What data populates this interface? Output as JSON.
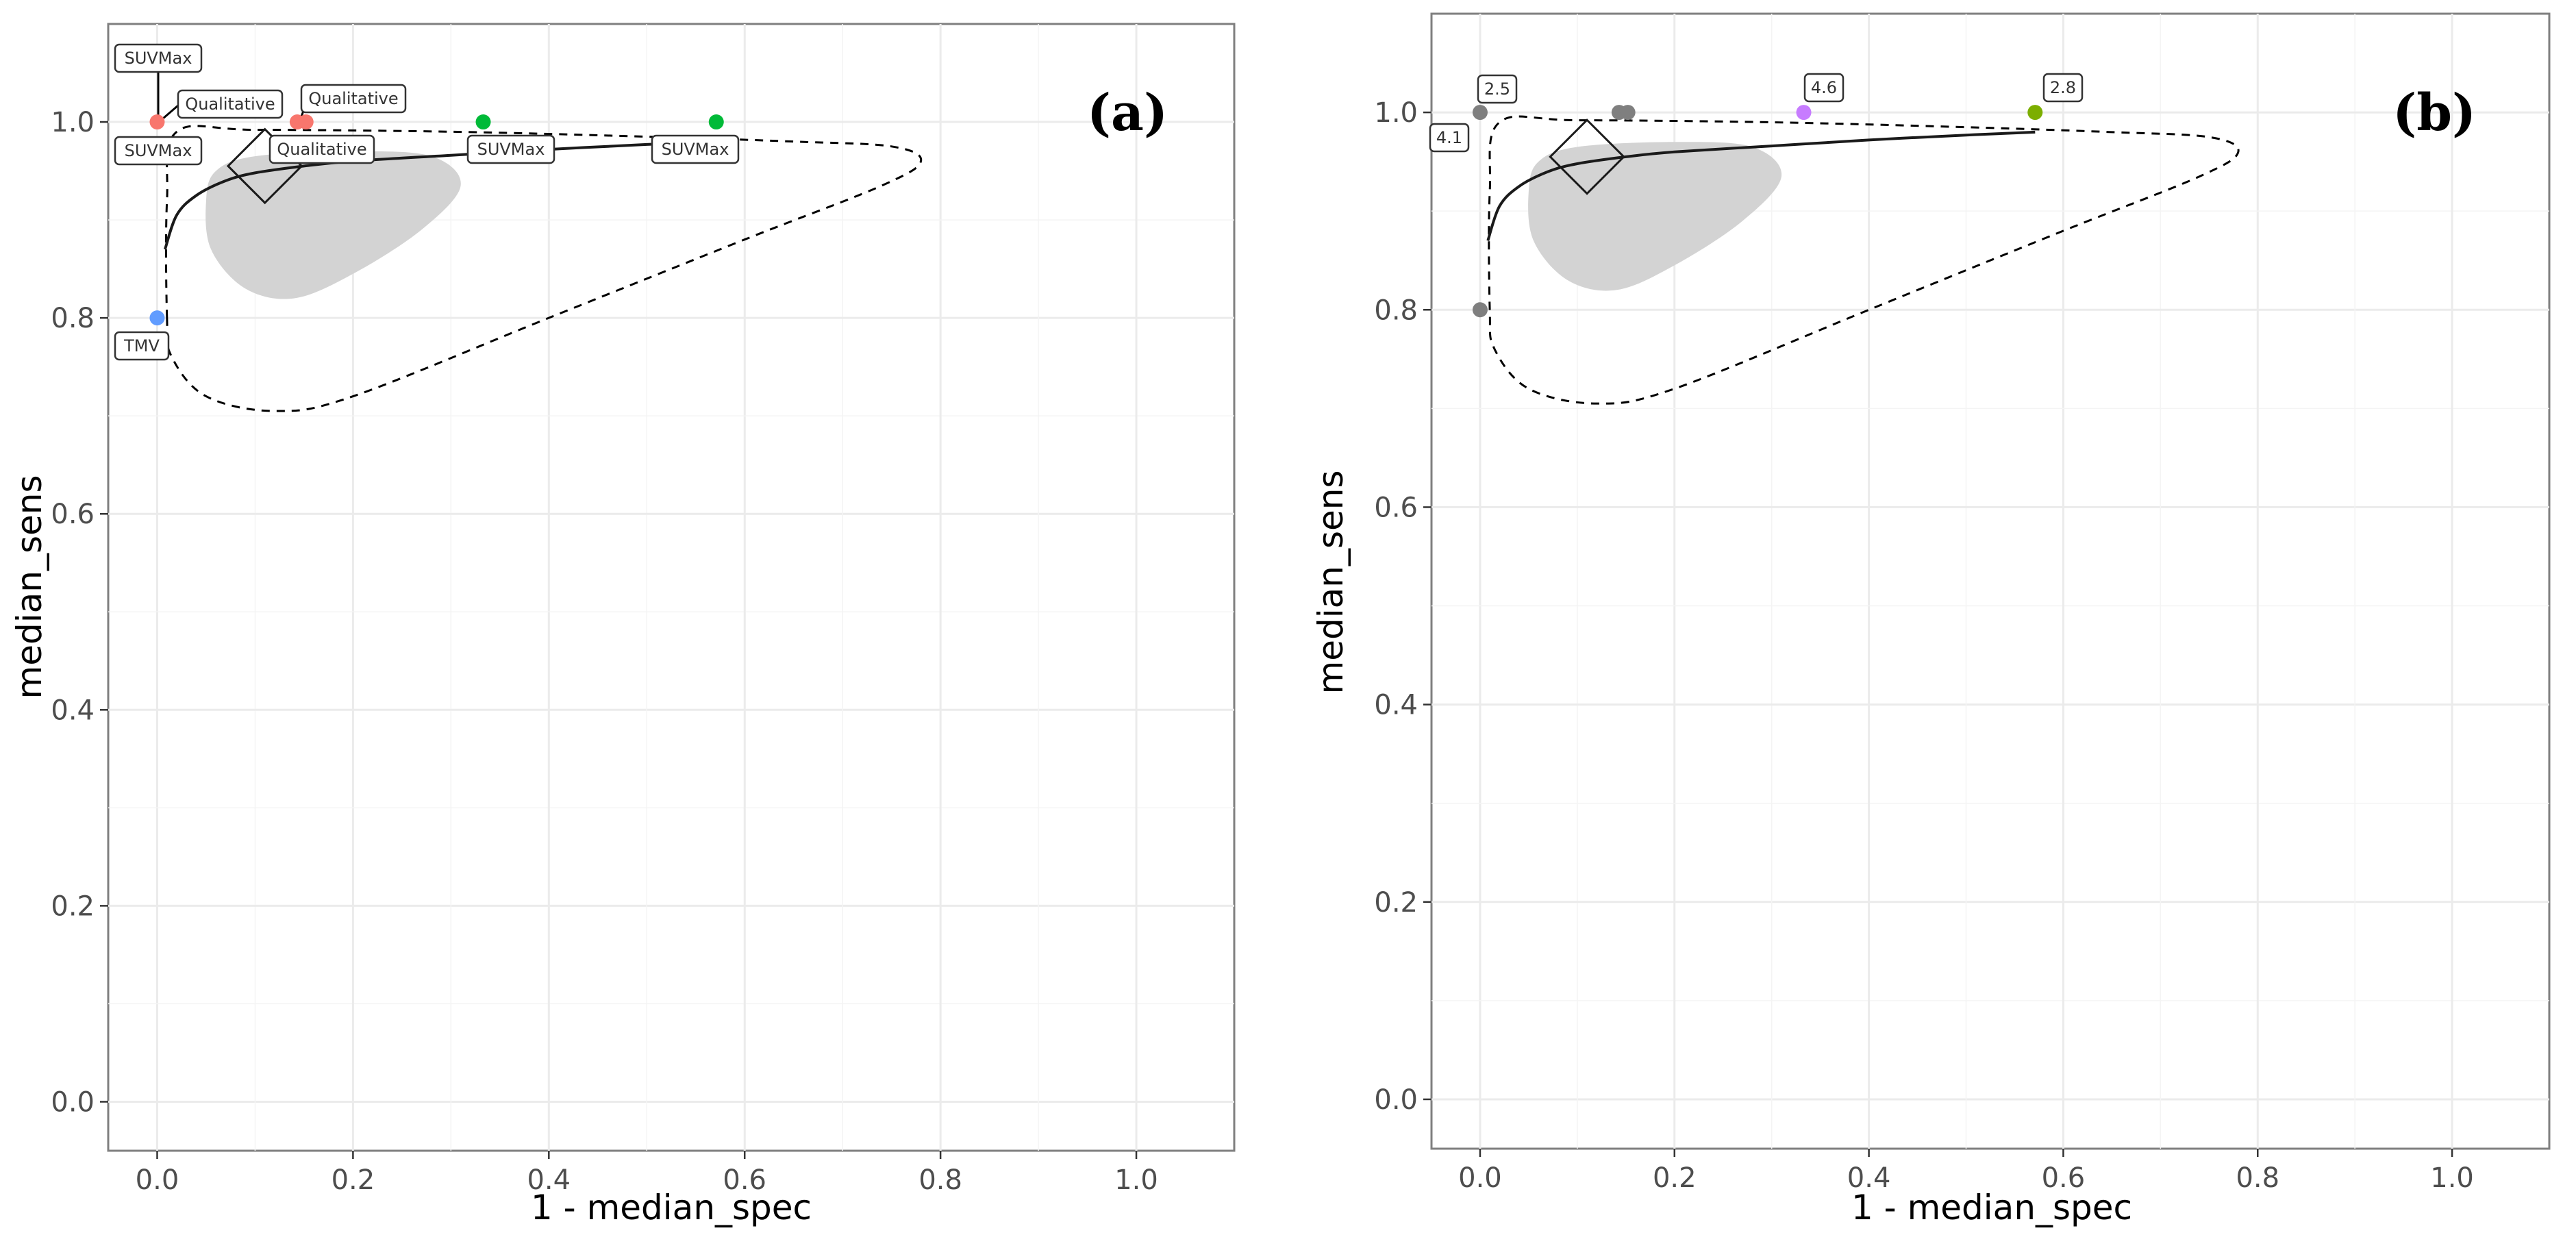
{
  "chart_data": [
    {
      "type": "scatter",
      "panel_label": "(a)",
      "xlabel": "1 - median_spec",
      "ylabel": "median_sens",
      "xlim": [
        -0.05,
        1.1
      ],
      "ylim": [
        -0.05,
        1.1
      ],
      "xticks": [
        "0.0",
        "0.2",
        "0.4",
        "0.6",
        "0.8",
        "1.0"
      ],
      "yticks": [
        "0.0",
        "0.2",
        "0.4",
        "0.6",
        "0.8",
        "1.0"
      ],
      "grid": true,
      "points": [
        {
          "x": 0.0,
          "y": 1.0,
          "color": "#f8766d"
        },
        {
          "x": 0.143,
          "y": 1.0,
          "color": "#f8766d"
        },
        {
          "x": 0.152,
          "y": 1.0,
          "color": "#f8766d"
        },
        {
          "x": 0.333,
          "y": 1.0,
          "color": "#00ba38"
        },
        {
          "x": 0.571,
          "y": 1.0,
          "color": "#00ba38"
        },
        {
          "x": 0.0,
          "y": 0.8,
          "color": "#619cff"
        }
      ],
      "labels": [
        "SUVMax",
        "Qualitative",
        "Qualitative",
        "SUVMax",
        "Qualitative",
        "SUVMax",
        "SUVMax",
        "TMV"
      ],
      "summary_point": {
        "x": 0.11,
        "y": 0.955
      },
      "sroc_curve": [
        [
          0.008,
          0.87
        ],
        [
          0.02,
          0.905
        ],
        [
          0.04,
          0.925
        ],
        [
          0.07,
          0.94
        ],
        [
          0.1,
          0.948
        ],
        [
          0.15,
          0.955
        ],
        [
          0.2,
          0.96
        ],
        [
          0.3,
          0.966
        ],
        [
          0.4,
          0.972
        ],
        [
          0.5,
          0.977
        ],
        [
          0.571,
          0.98
        ]
      ],
      "confidence_region": [
        [
          0.05,
          0.92
        ],
        [
          0.06,
          0.95
        ],
        [
          0.1,
          0.965
        ],
        [
          0.2,
          0.97
        ],
        [
          0.28,
          0.965
        ],
        [
          0.31,
          0.935
        ],
        [
          0.27,
          0.89
        ],
        [
          0.2,
          0.845
        ],
        [
          0.14,
          0.82
        ],
        [
          0.09,
          0.83
        ],
        [
          0.055,
          0.87
        ]
      ],
      "prediction_region": [
        [
          0.01,
          0.8
        ],
        [
          0.01,
          0.92
        ],
        [
          0.02,
          0.99
        ],
        [
          0.1,
          0.992
        ],
        [
          0.3,
          0.99
        ],
        [
          0.5,
          0.985
        ],
        [
          0.65,
          0.98
        ],
        [
          0.75,
          0.975
        ],
        [
          0.78,
          0.96
        ],
        [
          0.74,
          0.935
        ],
        [
          0.6,
          0.88
        ],
        [
          0.4,
          0.8
        ],
        [
          0.2,
          0.72
        ],
        [
          0.12,
          0.705
        ],
        [
          0.05,
          0.72
        ],
        [
          0.015,
          0.76
        ]
      ]
    },
    {
      "type": "scatter",
      "panel_label": "(b)",
      "xlabel": "1 - median_spec",
      "ylabel": "median_sens",
      "xlim": [
        -0.05,
        1.1
      ],
      "ylim": [
        -0.05,
        1.1
      ],
      "xticks": [
        "0.0",
        "0.2",
        "0.4",
        "0.6",
        "0.8",
        "1.0"
      ],
      "yticks": [
        "0.0",
        "0.2",
        "0.4",
        "0.6",
        "0.8",
        "1.0"
      ],
      "grid": true,
      "points": [
        {
          "x": 0.0,
          "y": 1.0,
          "color": "#7f7f7f"
        },
        {
          "x": 0.143,
          "y": 1.0,
          "color": "#7f7f7f"
        },
        {
          "x": 0.152,
          "y": 1.0,
          "color": "#7f7f7f"
        },
        {
          "x": 0.333,
          "y": 1.0,
          "color": "#c77cff"
        },
        {
          "x": 0.571,
          "y": 1.0,
          "color": "#7cae00"
        },
        {
          "x": 0.0,
          "y": 0.8,
          "color": "#7f7f7f"
        }
      ],
      "labels": [
        "2.5",
        "4.1",
        "4.6",
        "2.8"
      ],
      "summary_point": {
        "x": 0.11,
        "y": 0.955
      },
      "sroc_curve": [
        [
          0.008,
          0.87
        ],
        [
          0.02,
          0.905
        ],
        [
          0.04,
          0.925
        ],
        [
          0.07,
          0.94
        ],
        [
          0.1,
          0.948
        ],
        [
          0.15,
          0.955
        ],
        [
          0.2,
          0.96
        ],
        [
          0.3,
          0.966
        ],
        [
          0.4,
          0.972
        ],
        [
          0.5,
          0.977
        ],
        [
          0.571,
          0.98
        ]
      ],
      "confidence_region": [
        [
          0.05,
          0.92
        ],
        [
          0.06,
          0.95
        ],
        [
          0.1,
          0.965
        ],
        [
          0.2,
          0.97
        ],
        [
          0.28,
          0.965
        ],
        [
          0.31,
          0.935
        ],
        [
          0.27,
          0.89
        ],
        [
          0.2,
          0.845
        ],
        [
          0.14,
          0.82
        ],
        [
          0.09,
          0.83
        ],
        [
          0.055,
          0.87
        ]
      ],
      "prediction_region": [
        [
          0.01,
          0.8
        ],
        [
          0.01,
          0.92
        ],
        [
          0.02,
          0.99
        ],
        [
          0.1,
          0.992
        ],
        [
          0.3,
          0.99
        ],
        [
          0.5,
          0.985
        ],
        [
          0.65,
          0.98
        ],
        [
          0.75,
          0.975
        ],
        [
          0.78,
          0.96
        ],
        [
          0.74,
          0.935
        ],
        [
          0.6,
          0.88
        ],
        [
          0.4,
          0.8
        ],
        [
          0.2,
          0.72
        ],
        [
          0.12,
          0.705
        ],
        [
          0.05,
          0.72
        ],
        [
          0.015,
          0.76
        ]
      ]
    }
  ]
}
